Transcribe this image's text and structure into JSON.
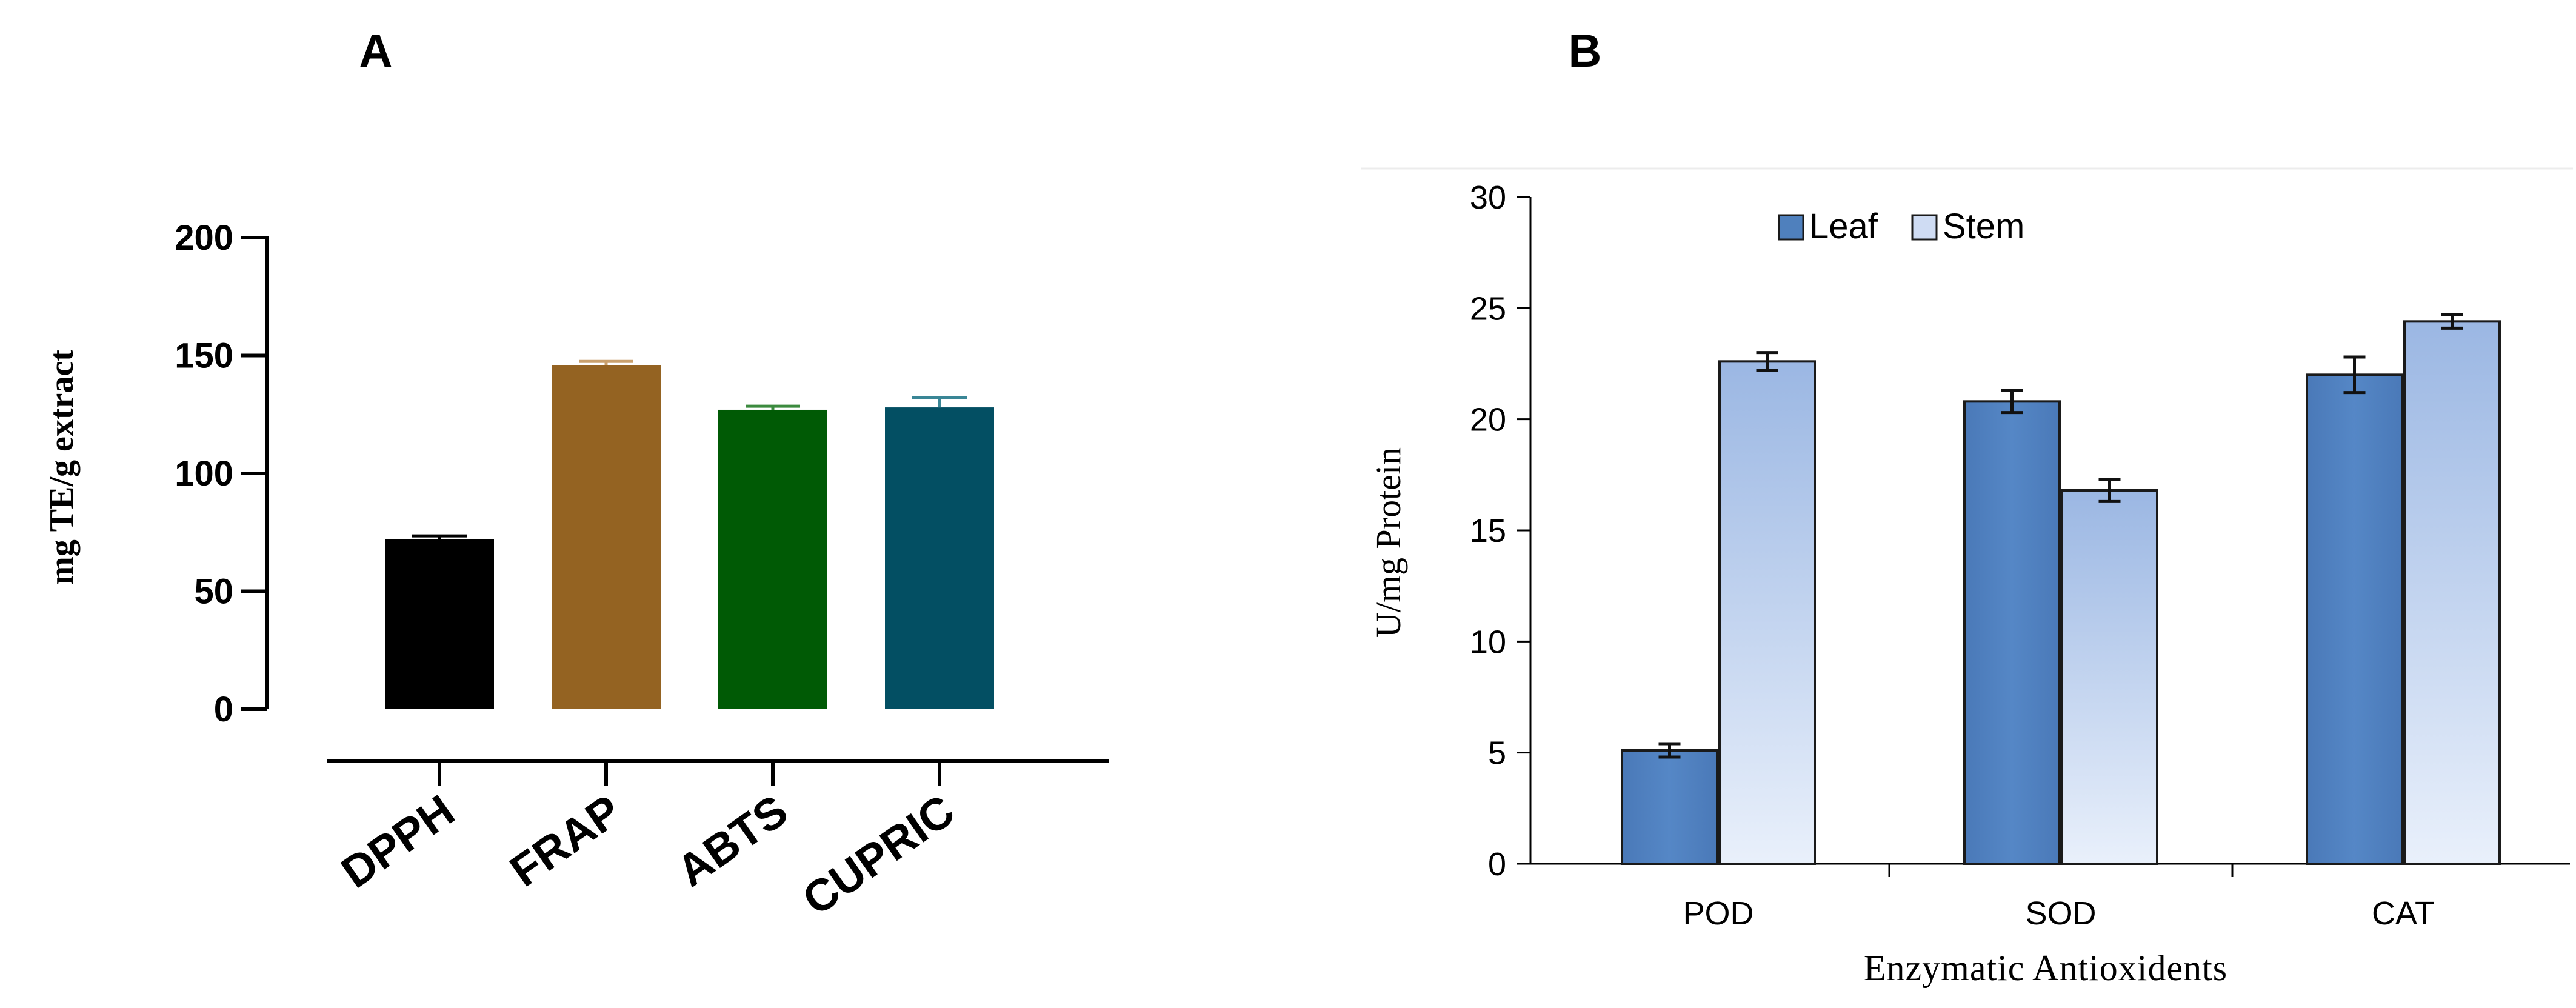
{
  "chart_data": [
    {
      "panel": "A",
      "type": "bar",
      "title": "",
      "xlabel": "",
      "ylabel": "mg TE/g extract",
      "ylim": [
        0,
        200
      ],
      "yticks": [
        0,
        50,
        100,
        150,
        200
      ],
      "categories": [
        "DPPH",
        "FRAP",
        "ABTS",
        "CUPRIC"
      ],
      "values": [
        72,
        146,
        127,
        128
      ],
      "errors": [
        1.5,
        1.5,
        1.5,
        4
      ],
      "colors": [
        "#000000",
        "#946322",
        "#005a05",
        "#034f63"
      ],
      "error_colors": [
        "#000000",
        "#c9a06d",
        "#3b8a3e",
        "#3a8696"
      ]
    },
    {
      "panel": "B",
      "type": "bar",
      "title": "",
      "xlabel": "Enzymatic Antioxidents",
      "ylabel": "U/mg Protein",
      "ylim": [
        0,
        30
      ],
      "yticks": [
        0,
        5,
        10,
        15,
        20,
        25,
        30
      ],
      "categories": [
        "POD",
        "SOD",
        "CAT"
      ],
      "series": [
        {
          "name": "Leaf",
          "values": [
            5.1,
            20.8,
            22.0
          ],
          "errors": [
            0.3,
            0.5,
            0.8
          ],
          "color": "#4f80bd"
        },
        {
          "name": "Stem",
          "values": [
            22.6,
            16.8,
            24.4
          ],
          "errors": [
            0.4,
            0.5,
            0.3
          ],
          "color": "#a8c1e6"
        }
      ],
      "legend": "top-left"
    }
  ]
}
